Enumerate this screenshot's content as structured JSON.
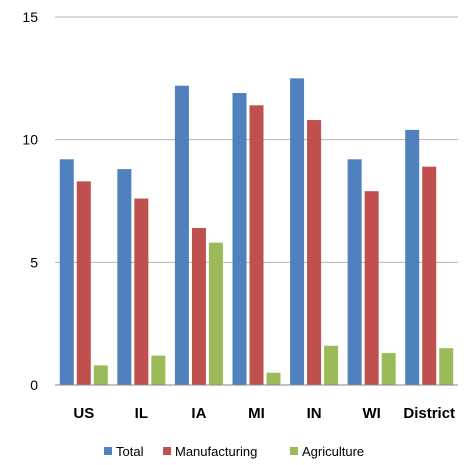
{
  "chart_data": {
    "type": "bar",
    "title": "",
    "xlabel": "",
    "ylabel": "",
    "categories": [
      "US",
      "IL",
      "IA",
      "MI",
      "IN",
      "WI",
      "District"
    ],
    "series": [
      {
        "name": "Total",
        "color": "#4F81BD",
        "values": [
          9.2,
          8.8,
          12.2,
          11.9,
          12.5,
          9.2,
          10.4
        ]
      },
      {
        "name": "Manufacturing",
        "color": "#C0504D",
        "values": [
          8.3,
          7.6,
          6.4,
          11.4,
          10.8,
          7.9,
          8.9
        ]
      },
      {
        "name": "Agriculture",
        "color": "#9BBB59",
        "values": [
          0.8,
          1.2,
          5.8,
          0.5,
          1.6,
          1.3,
          1.5
        ]
      }
    ],
    "ylim": [
      0,
      15
    ],
    "yticks": [
      0,
      5,
      10,
      15
    ],
    "grid": true,
    "legend_position": "bottom"
  }
}
